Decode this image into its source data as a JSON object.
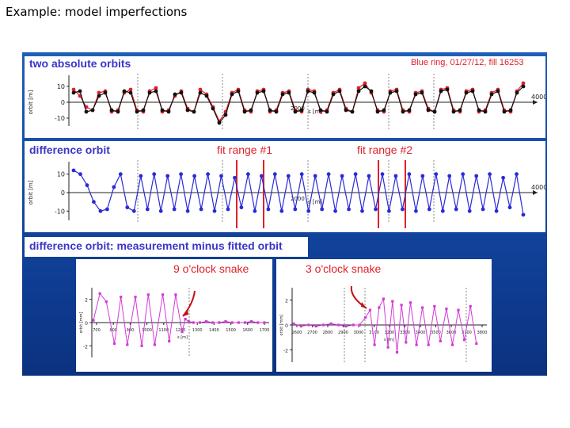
{
  "slide": {
    "title": "Example: model imperfections"
  },
  "colors": {
    "red_series": "#e0202a",
    "black_series": "#111111",
    "blue_series": "#2a2ad8",
    "magenta_series": "#d33ad8",
    "fit_line": "#e0202a",
    "panel_blue": "#164da6"
  },
  "panels": {
    "absolute": {
      "label": "two absolute orbits",
      "meta": "Blue ring, 01/27/12, fill 16253",
      "y_label": "orbit [m]",
      "x_label": "s [m]",
      "y_ticks": [
        "10",
        "0",
        "-10"
      ],
      "x_end_tick": "4000",
      "x_mid_tick": "2000"
    },
    "difference": {
      "label": "difference orbit",
      "fit1_label": "fit range #1",
      "fit2_label": "fit range #2",
      "y_label": "orbit [m]",
      "x_label": "s [m]",
      "y_ticks": [
        "10",
        "0",
        "-10"
      ],
      "x_end_tick": "4000",
      "x_mid_tick": "2000"
    },
    "residual": {
      "label": "difference orbit: measurement minus fitted orbit",
      "left": {
        "snake_label": "9 o'clock snake",
        "y_label": "orbit [mm]",
        "x_label": "s [m]",
        "y_ticks": [
          "2",
          "0",
          "-2"
        ],
        "x_ticks": [
          "700",
          "800",
          "900",
          "1000",
          "1100",
          "1200",
          "1300",
          "1400",
          "1500",
          "1600",
          "1700"
        ]
      },
      "right": {
        "snake_label": "3 o'clock snake",
        "y_label": "orbit [mm]",
        "x_label": "s [m]",
        "y_ticks": [
          "2",
          "0",
          "-2"
        ],
        "x_ticks": [
          "2600",
          "2700",
          "2800",
          "2900",
          "3000",
          "3100",
          "3200",
          "3300",
          "3400",
          "3500",
          "3600",
          "3700",
          "3800"
        ]
      }
    }
  },
  "chart_data": [
    {
      "type": "line",
      "title": "two absolute orbits",
      "xlabel": "s [m]",
      "ylabel": "orbit [m]",
      "xlim": [
        0,
        4000
      ],
      "ylim": [
        -15,
        15
      ],
      "series": [
        {
          "name": "",
          "color": "#e0202a",
          "values": [
            8,
            4,
            -3,
            -5,
            6,
            7,
            -6,
            -5,
            6,
            8,
            -5,
            -6,
            7,
            9,
            -6,
            -5,
            4,
            7,
            -4,
            -6,
            8,
            5,
            -3,
            -12,
            -6,
            6,
            8,
            -5,
            -6,
            7,
            8,
            -6,
            -5,
            6,
            7,
            -5,
            -6,
            8,
            7,
            -6,
            -5,
            6,
            8,
            -4,
            -6,
            9,
            12,
            6,
            -5,
            -6,
            7,
            8,
            -5,
            -6,
            6,
            7,
            -4,
            -6,
            8,
            9,
            -5,
            -6,
            7,
            8,
            -6,
            -5,
            6,
            8,
            -5,
            -6,
            7,
            12
          ]
        },
        {
          "name": "",
          "color": "#111111",
          "values": [
            6,
            7,
            -6,
            -5,
            4,
            6,
            -5,
            -6,
            7,
            6,
            -6,
            -5,
            6,
            7,
            -5,
            -6,
            5,
            6,
            -5,
            -6,
            6,
            4,
            -4,
            -13,
            -8,
            5,
            7,
            -6,
            -5,
            6,
            7,
            -5,
            -6,
            5,
            6,
            -6,
            -5,
            7,
            6,
            -5,
            -6,
            5,
            7,
            -5,
            -6,
            7,
            10,
            7,
            -6,
            -5,
            6,
            7,
            -6,
            -5,
            5,
            6,
            -5,
            -6,
            7,
            8,
            -6,
            -5,
            6,
            7,
            -5,
            -6,
            5,
            7,
            -6,
            -5,
            6,
            10
          ]
        }
      ]
    },
    {
      "type": "line",
      "title": "difference orbit",
      "xlabel": "s [m]",
      "ylabel": "orbit [m]",
      "xlim": [
        0,
        4000
      ],
      "ylim": [
        -15,
        15
      ],
      "series": [
        {
          "name": "",
          "color": "#2a2ad8",
          "values": [
            12,
            10,
            4,
            -5,
            -10,
            -9,
            3,
            10,
            -8,
            -10,
            9,
            -9,
            10,
            -10,
            9,
            -9,
            10,
            -10,
            9,
            -9,
            10,
            -10,
            9,
            -9,
            8,
            -8,
            10,
            -10,
            9,
            -9,
            10,
            -10,
            9,
            -9,
            10,
            -10,
            9,
            -9,
            10,
            -10,
            9,
            -9,
            10,
            -10,
            9,
            -9,
            10,
            -10,
            9,
            -9,
            10,
            -10,
            9,
            -9,
            10,
            -10,
            9,
            -9,
            10,
            -10,
            9,
            -9,
            10,
            -10,
            8,
            -8,
            10,
            -12
          ]
        }
      ]
    },
    {
      "type": "line",
      "title": "9 o'clock snake",
      "xlabel": "s [m]",
      "ylabel": "orbit [mm]",
      "xlim": [
        650,
        1750
      ],
      "ylim": [
        -3,
        3
      ],
      "series": [
        {
          "name": "",
          "color": "#d33ad8",
          "x": [
            660,
            700,
            740,
            790,
            830,
            870,
            920,
            960,
            1000,
            1040,
            1090,
            1130,
            1170,
            1210,
            1230,
            1250,
            1280,
            1320,
            1360,
            1400,
            1440,
            1480,
            1520,
            1560,
            1600,
            1640,
            1680,
            1720
          ],
          "values": [
            0.2,
            2.5,
            1.8,
            -1.8,
            2.2,
            -1.9,
            2.2,
            -2.0,
            2.4,
            -1.9,
            2.4,
            -1.6,
            2.4,
            -0.8,
            0.3,
            0.1,
            0.0,
            0.0,
            0.1,
            0.0,
            0.0,
            0.1,
            0.0,
            0.0,
            0.0,
            0.1,
            0.0,
            0.0
          ]
        }
      ]
    },
    {
      "type": "line",
      "title": "3 o'clock snake",
      "xlabel": "s [m]",
      "ylabel": "orbit [mm]",
      "xlim": [
        2550,
        3850
      ],
      "ylim": [
        -3,
        3
      ],
      "series": [
        {
          "name": "",
          "color": "#d33ad8",
          "x": [
            2560,
            2610,
            2660,
            2710,
            2760,
            2810,
            2860,
            2910,
            2960,
            3000,
            3040,
            3070,
            3100,
            3130,
            3160,
            3190,
            3220,
            3250,
            3280,
            3310,
            3340,
            3380,
            3420,
            3460,
            3500,
            3540,
            3580,
            3620,
            3660,
            3700,
            3740,
            3780
          ],
          "values": [
            0.1,
            -0.1,
            0.0,
            -0.1,
            0.0,
            0.1,
            0.0,
            -0.1,
            0.0,
            0.0,
            0.6,
            1.2,
            -1.6,
            1.4,
            2.1,
            -1.8,
            1.9,
            -2.2,
            1.6,
            -1.4,
            1.8,
            -1.6,
            1.4,
            -1.6,
            1.5,
            -1.3,
            1.3,
            -1.6,
            1.2,
            -1.2,
            1.5,
            -1.5
          ]
        }
      ]
    }
  ]
}
